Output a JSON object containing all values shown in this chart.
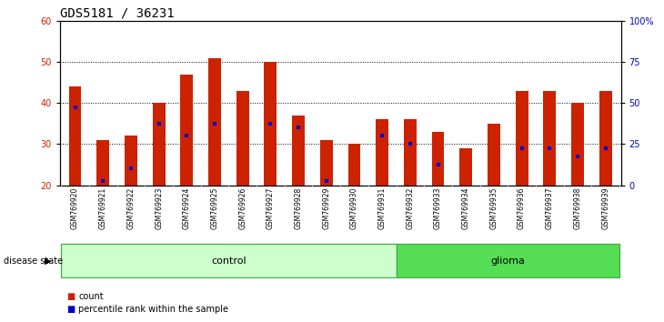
{
  "title": "GDS5181 / 36231",
  "samples": [
    "GSM769920",
    "GSM769921",
    "GSM769922",
    "GSM769923",
    "GSM769924",
    "GSM769925",
    "GSM769926",
    "GSM769927",
    "GSM769928",
    "GSM769929",
    "GSM769930",
    "GSM769931",
    "GSM769932",
    "GSM769933",
    "GSM769934",
    "GSM769935",
    "GSM769936",
    "GSM769937",
    "GSM769938",
    "GSM769939"
  ],
  "bar_tops": [
    44,
    31,
    32,
    40,
    47,
    51,
    43,
    50,
    37,
    31,
    30,
    36,
    36,
    33,
    29,
    35,
    43,
    43,
    40,
    43
  ],
  "blue_vals": [
    39,
    21,
    24,
    35,
    32,
    35,
    null,
    35,
    34,
    21,
    null,
    32,
    30,
    25,
    null,
    null,
    29,
    29,
    27,
    29
  ],
  "ymin": 20,
  "ymax": 60,
  "yticks_left": [
    20,
    30,
    40,
    50,
    60
  ],
  "right_yticks": [
    0,
    25,
    50,
    75,
    100
  ],
  "right_yticklabels": [
    "0",
    "25",
    "50",
    "75",
    "100%"
  ],
  "bar_color": "#CC2200",
  "blue_color": "#0000CC",
  "groups": [
    {
      "label": "control",
      "start": 0,
      "end": 11,
      "color": "#CCFFCC",
      "edge": "#44AA44"
    },
    {
      "label": "glioma",
      "start": 12,
      "end": 19,
      "color": "#55DD55",
      "edge": "#44AA44"
    }
  ],
  "xlabel_left": "disease state",
  "legend_count_label": "count",
  "legend_percentile_label": "percentile rank within the sample",
  "title_fontsize": 10,
  "tick_fontsize": 7,
  "bar_width": 0.45,
  "figsize": [
    7.3,
    3.54
  ],
  "dpi": 100
}
